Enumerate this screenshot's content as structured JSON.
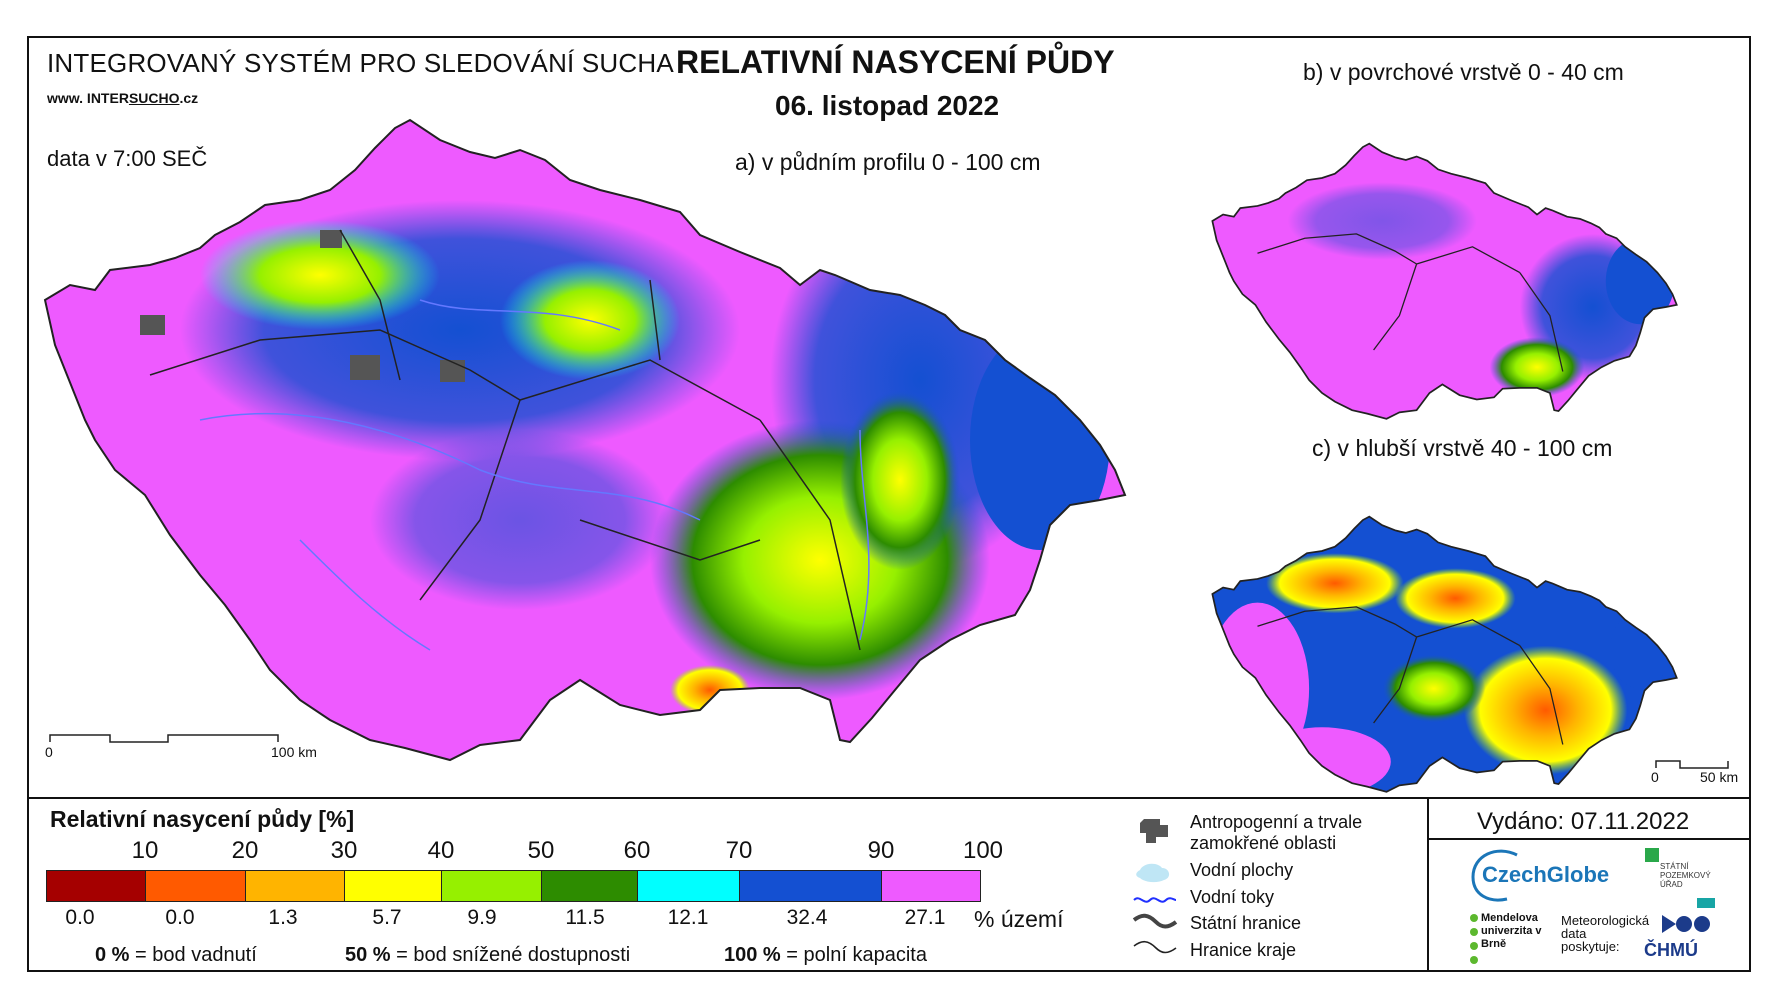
{
  "header": {
    "system_name": "INTEGROVANÝ SYSTÉM PRO SLEDOVÁNÍ SUCHA",
    "website_prefix": "www. INTER",
    "website_underlined": "SUCHO",
    "website_suffix": ".cz",
    "data_time": "data v 7:00 SEČ",
    "title": "RELATIVNÍ NASYCENÍ PŮDY",
    "date": "06. listopad 2022"
  },
  "maps": {
    "a": {
      "label": "a) v půdním profilu 0 - 100 cm",
      "scale_start": "0",
      "scale_end": "100 km"
    },
    "b": {
      "label": "b) v povrchové vrstvě 0 - 40 cm"
    },
    "c": {
      "label": "c) v hlubší vrstvě 40 - 100 cm",
      "scale_start": "0",
      "scale_end": "50 km"
    }
  },
  "legend": {
    "title": "Relativní nasycení půdy [%]",
    "ticks": [
      "10",
      "20",
      "30",
      "40",
      "50",
      "60",
      "70",
      "90",
      "100"
    ],
    "classes": [
      {
        "color": "#a50000",
        "area_pct": "0.0"
      },
      {
        "color": "#ff5a00",
        "area_pct": "0.0"
      },
      {
        "color": "#ffb400",
        "area_pct": "1.3"
      },
      {
        "color": "#ffff00",
        "area_pct": "5.7"
      },
      {
        "color": "#96f000",
        "area_pct": "9.9"
      },
      {
        "color": "#2d8c00",
        "area_pct": "11.5"
      },
      {
        "color": "#00ffff",
        "area_pct": "12.1"
      },
      {
        "color": "#1450d2",
        "area_pct": "32.4"
      },
      {
        "color": "#ee5aff",
        "area_pct": "27.1"
      }
    ],
    "area_unit": "% území",
    "notes": [
      {
        "value": "0 %",
        "text": "= bod vadnutí"
      },
      {
        "value": "50 %",
        "text": "= bod snížené dostupnosti"
      },
      {
        "value": "100 %",
        "text": "= polní kapacita"
      }
    ]
  },
  "symbols": {
    "anthropogenic": "Antropogenní a trvale zamokřené oblasti",
    "water_bodies": "Vodní plochy",
    "rivers": "Vodní toky",
    "state_border": "Státní hranice",
    "region_border": "Hranice kraje"
  },
  "footer": {
    "issued": "Vydáno: 07.11.2022",
    "czechglobe": "CzechGlobe",
    "spu": "STÁTNÍ POZEMKOVÝ ÚŘAD",
    "mendelu": "Mendelova univerzita v Brně",
    "met_data": "Meteorologická data poskytuje:",
    "chmu": "ČHMÚ"
  },
  "colors": {
    "background_map": "#ee5aff",
    "border": "#222222",
    "river": "#6478ff"
  }
}
